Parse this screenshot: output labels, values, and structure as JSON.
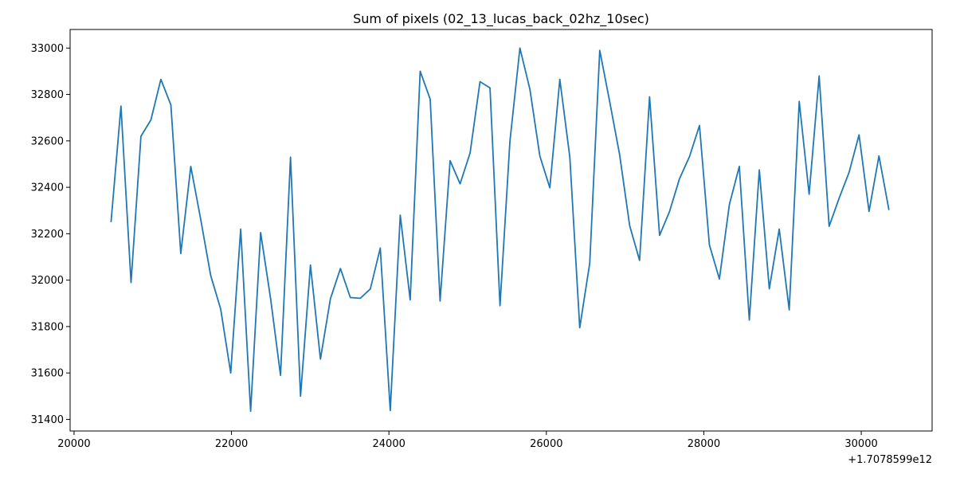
{
  "chart_data": {
    "type": "line",
    "title": "Sum of pixels (02_13_lucas_back_02hz_10sec)",
    "xlabel": "",
    "ylabel": "",
    "x_offset_label": "+1.7078599e12",
    "xlim": [
      19950,
      30900
    ],
    "ylim": [
      31350,
      33080
    ],
    "xticks": [
      20000,
      22000,
      24000,
      26000,
      28000,
      30000
    ],
    "yticks": [
      31400,
      31600,
      31800,
      32000,
      32200,
      32400,
      32600,
      32800,
      33000
    ],
    "grid": false,
    "line_color": "#1f77b4",
    "series": [
      {
        "x": [
          20470,
          20596,
          20724,
          20850,
          20976,
          21103,
          21230,
          21356,
          21483,
          21610,
          21736,
          21863,
          21990,
          22117,
          22243,
          22370,
          22497,
          22623,
          22750,
          22877,
          23003,
          23130,
          23257,
          23384,
          23510,
          23637,
          23764,
          23890,
          24017,
          24144,
          24270,
          24397,
          24524,
          24650,
          24777,
          24904,
          25031,
          25157,
          25284,
          25411,
          25537,
          25664,
          25791,
          25917,
          26044,
          26171,
          26298,
          26424,
          26551,
          26678,
          26804,
          26931,
          27058,
          27184,
          27311,
          27438,
          27565,
          27691,
          27818,
          27945,
          28071,
          28198,
          28325,
          28451,
          28578,
          28705,
          28832,
          28958,
          29085,
          29212,
          29338,
          29465,
          29592,
          29718,
          29845,
          29972,
          30099,
          30225,
          30352
        ],
        "y": [
          32250,
          32750,
          31990,
          32620,
          32690,
          32865,
          32755,
          32115,
          32490,
          32260,
          32020,
          31875,
          31600,
          32220,
          31435,
          32205,
          31920,
          31590,
          32530,
          31500,
          32065,
          31660,
          31920,
          32050,
          31925,
          31922,
          31962,
          32138,
          31438,
          32280,
          31915,
          32900,
          32780,
          31910,
          32515,
          32415,
          32548,
          32855,
          32828,
          31890,
          32598,
          33000,
          32822,
          32535,
          32398,
          32865,
          32530,
          31795,
          32073,
          32990,
          32770,
          32540,
          32235,
          32085,
          32790,
          32193,
          32296,
          32437,
          32532,
          32666,
          32152,
          32005,
          32326,
          32490,
          31828,
          32475,
          31963,
          32220,
          31872,
          32770,
          32370,
          32880,
          32232,
          32352,
          32464,
          32626,
          32296,
          32535,
          32302
        ]
      }
    ]
  }
}
